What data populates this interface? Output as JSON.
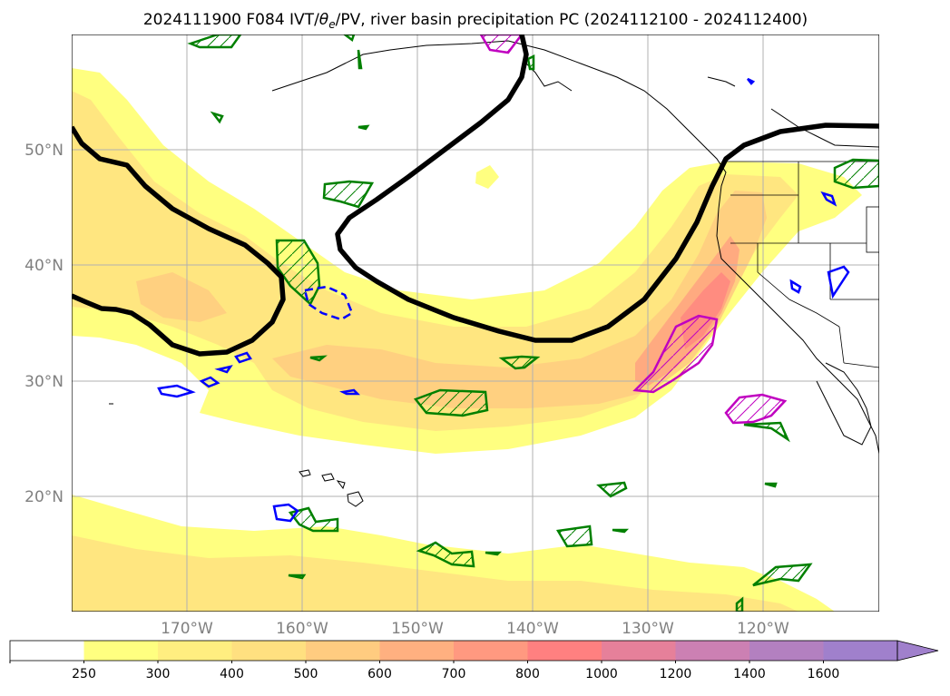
{
  "title": "2024111900 F084 IVT/θₑ/PV, river basin precipitation PC (2024112100 - 2024112400)",
  "title_parts": {
    "prefix": "2024111900 F084 IVT/",
    "theta": "θ",
    "sub": "e",
    "suffix": "/PV, river basin precipitation PC (2024112100 - 2024112400)"
  },
  "map": {
    "lon_ticks": [
      "170°W",
      "160°W",
      "150°W",
      "140°W",
      "130°W",
      "120°W"
    ],
    "lat_ticks": [
      "50°N",
      "40°N",
      "30°N",
      "20°N"
    ],
    "gridlines": true
  },
  "colorbar": {
    "labels": [
      "250",
      "300",
      "400",
      "500",
      "600",
      "700",
      "800",
      "1000",
      "1200",
      "1400",
      "1600"
    ],
    "colors": [
      "#ffffff",
      "#ffff80",
      "#ffee80",
      "#ffe080",
      "#ffcc80",
      "#ffb080",
      "#ff9980",
      "#ff8080",
      "#e6809a",
      "#cc80b3",
      "#b380c0",
      "#a080cc"
    ],
    "extend": "max"
  },
  "colors": {
    "ivt_low": "#ffff80",
    "ivt_mid": "#ffe080",
    "ivt_high": "#ffaa80",
    "ivt_max": "#ff8880",
    "pv_contour": "#000000",
    "green_contour": "#008000",
    "blue_contour": "#0000ff",
    "magenta_contour": "#c000c0",
    "grid": "#b0b0b0"
  }
}
